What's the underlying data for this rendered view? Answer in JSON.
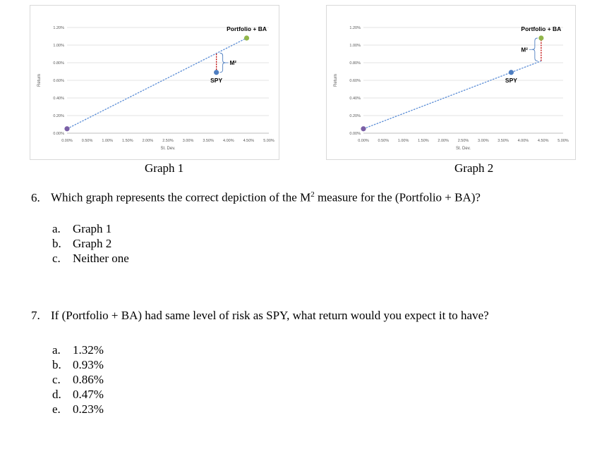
{
  "chart_data": [
    {
      "type": "scatter",
      "title": "Graph 1",
      "xlabel": "St. Dev.",
      "ylabel": "Return",
      "xlim": [
        0,
        5.0
      ],
      "ylim": [
        0,
        1.2
      ],
      "x_ticks": [
        "0.00%",
        "0.50%",
        "1.00%",
        "1.50%",
        "2.00%",
        "2.50%",
        "3.00%",
        "3.50%",
        "4.00%",
        "4.50%",
        "5.00%"
      ],
      "y_ticks": [
        "0.00%",
        "0.20%",
        "0.40%",
        "0.60%",
        "0.80%",
        "1.00%",
        "1.20%"
      ],
      "grid": true,
      "points": [
        {
          "label": "",
          "x": 0.0,
          "y": 0.05,
          "color": "#7a5fa6"
        },
        {
          "label": "SPY",
          "x": 3.7,
          "y": 0.69,
          "color": "#4e7ec1"
        },
        {
          "label": "Portfolio + BA",
          "x": 4.45,
          "y": 1.08,
          "color": "#92b64b"
        }
      ],
      "cal_line": {
        "from": [
          0.0,
          0.05
        ],
        "to": [
          4.45,
          1.08
        ],
        "color": "#5b8dd6"
      },
      "m2_bracket": {
        "label": "M²",
        "x": 3.7,
        "y_from": 0.69,
        "y_to": 0.91,
        "color": "#c00000"
      }
    },
    {
      "type": "scatter",
      "title": "Graph 2",
      "xlabel": "St. Dev.",
      "ylabel": "Return",
      "xlim": [
        0,
        5.0
      ],
      "ylim": [
        0,
        1.2
      ],
      "x_ticks": [
        "0.00%",
        "0.50%",
        "1.00%",
        "1.50%",
        "2.00%",
        "2.50%",
        "3.00%",
        "3.50%",
        "4.00%",
        "4.50%",
        "5.00%"
      ],
      "y_ticks": [
        "0.00%",
        "0.20%",
        "0.40%",
        "0.60%",
        "0.80%",
        "1.00%",
        "1.20%"
      ],
      "grid": true,
      "points": [
        {
          "label": "",
          "x": 0.0,
          "y": 0.05,
          "color": "#7a5fa6"
        },
        {
          "label": "SPY",
          "x": 3.7,
          "y": 0.69,
          "color": "#4e7ec1"
        },
        {
          "label": "Portfolio + BA",
          "x": 4.45,
          "y": 1.08,
          "color": "#92b64b"
        }
      ],
      "cal_line": {
        "from": [
          0.0,
          0.05
        ],
        "to": [
          4.45,
          0.82
        ],
        "color": "#5b8dd6"
      },
      "m2_bracket": {
        "label": "M²",
        "x": 4.45,
        "y_from": 0.82,
        "y_to": 1.08,
        "color": "#c00000"
      }
    }
  ],
  "captions": {
    "graph1": "Graph 1",
    "graph2": "Graph 2"
  },
  "questions": [
    {
      "number": "6.",
      "text_before": "Which graph represents the correct depiction of the M",
      "sup": "2",
      "text_after": " measure for the (Portfolio + BA)?",
      "options": [
        {
          "letter": "a.",
          "text": "Graph 1"
        },
        {
          "letter": "b.",
          "text": "Graph 2"
        },
        {
          "letter": "c.",
          "text": "Neither one"
        }
      ]
    },
    {
      "number": "7.",
      "text": "If (Portfolio + BA) had same level of risk as SPY, what return would you expect it to have?",
      "options": [
        {
          "letter": "a.",
          "text": "1.32%"
        },
        {
          "letter": "b.",
          "text": "0.93%"
        },
        {
          "letter": "c.",
          "text": "0.86%"
        },
        {
          "letter": "d.",
          "text": "0.47%"
        },
        {
          "letter": "e.",
          "text": "0.23%"
        }
      ]
    }
  ]
}
